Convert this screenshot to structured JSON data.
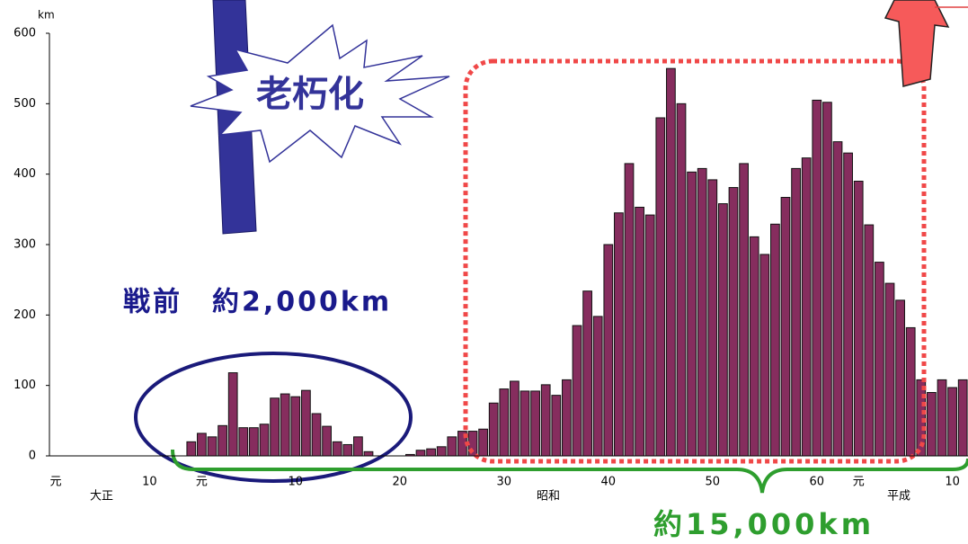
{
  "chart_data": {
    "type": "bar",
    "y_unit": "km",
    "categories": [
      "元",
      null,
      null,
      null,
      null,
      null,
      null,
      null,
      null,
      "10",
      null,
      null,
      null,
      null,
      "元",
      null,
      null,
      null,
      null,
      null,
      null,
      null,
      null,
      "10",
      null,
      null,
      null,
      null,
      null,
      null,
      null,
      null,
      null,
      "20",
      null,
      null,
      null,
      null,
      null,
      null,
      null,
      null,
      null,
      "30",
      null,
      null,
      null,
      null,
      null,
      null,
      null,
      null,
      null,
      "40",
      null,
      null,
      null,
      null,
      null,
      null,
      null,
      null,
      null,
      "50",
      null,
      null,
      null,
      null,
      null,
      null,
      null,
      null,
      null,
      "60",
      null,
      null,
      null,
      "元",
      null,
      null,
      null,
      null,
      null,
      null,
      null,
      null,
      "10",
      null
    ],
    "values": [
      0,
      0,
      0,
      0,
      0,
      0,
      0,
      0,
      0,
      0,
      0,
      0,
      0,
      20,
      32,
      27,
      43,
      118,
      40,
      40,
      45,
      82,
      88,
      84,
      93,
      60,
      42,
      20,
      16,
      27,
      6,
      0,
      0,
      0,
      2,
      8,
      10,
      13,
      27,
      35,
      35,
      38,
      75,
      95,
      106,
      92,
      92,
      101,
      86,
      108,
      185,
      234,
      198,
      300,
      345,
      415,
      353,
      342,
      480,
      550,
      500,
      403,
      408,
      392,
      358,
      381,
      415,
      311,
      286,
      329,
      367,
      408,
      423,
      505,
      502,
      446,
      430,
      390,
      328,
      275,
      245,
      221,
      182,
      108,
      90,
      108,
      97,
      108
    ],
    "color": "#862d5e",
    "eras": [
      "大正",
      "昭和",
      "平成"
    ],
    "annotations": [
      "老朽化",
      "戦前　約2,000km",
      "約15,000km"
    ],
    "ylim": [
      0,
      600
    ],
    "yticks": [
      0,
      100,
      200,
      300,
      400,
      500,
      600
    ],
    "grid": false
  }
}
